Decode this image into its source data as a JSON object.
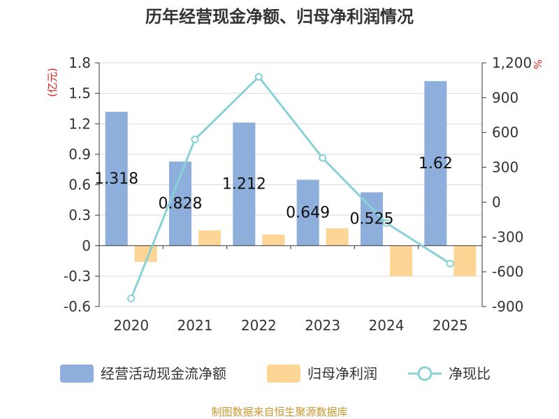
{
  "chart_data": {
    "type": "bar",
    "title": "历年经营现金净额、归母净利润情况",
    "categories": [
      "2020",
      "2021",
      "2022",
      "2023",
      "2024",
      "2025"
    ],
    "series": [
      {
        "name": "经营活动现金流净额",
        "type": "bar",
        "axis": "left",
        "color": "#8eaedb",
        "values": [
          1.318,
          0.828,
          1.212,
          0.649,
          0.525,
          1.62
        ],
        "labels": [
          "1.318",
          "0.828",
          "1.212",
          "0.649",
          "0.525",
          "1.62"
        ]
      },
      {
        "name": "归母净利润",
        "type": "bar",
        "axis": "left",
        "color": "#fdd696",
        "values": [
          -0.16,
          0.15,
          0.11,
          0.17,
          -0.3,
          -0.3
        ]
      },
      {
        "name": "净现比",
        "type": "line",
        "axis": "right",
        "color": "#88d1d6",
        "values": [
          -830,
          540,
          1080,
          380,
          -180,
          -530
        ]
      }
    ],
    "left_axis": {
      "unit": "(亿元)",
      "ylim": [
        -0.6,
        1.8
      ],
      "ticks": [
        {
          "value": 1.8,
          "label": "1.8"
        },
        {
          "value": 1.5,
          "label": "1.5"
        },
        {
          "value": 1.2,
          "label": "1.2"
        },
        {
          "value": 0.9,
          "label": "0.9"
        },
        {
          "value": 0.6,
          "label": "0.6"
        },
        {
          "value": 0.3,
          "label": "0.3"
        },
        {
          "value": 0,
          "label": "0"
        },
        {
          "value": -0.3,
          "label": "-0.3"
        },
        {
          "value": -0.6,
          "label": "-0.6"
        }
      ]
    },
    "right_axis": {
      "unit": "%",
      "ylim": [
        -900,
        1200
      ],
      "ticks": [
        {
          "value": 1200,
          "label": "1,200"
        },
        {
          "value": 900,
          "label": "900"
        },
        {
          "value": 600,
          "label": "600"
        },
        {
          "value": 300,
          "label": "300"
        },
        {
          "value": 0,
          "label": "0"
        },
        {
          "value": -300,
          "label": "-300"
        },
        {
          "value": -600,
          "label": "-600"
        },
        {
          "value": -900,
          "label": "-900"
        }
      ]
    },
    "legend_position": "bottom",
    "grid": true
  },
  "source": "制图数据来自恒生聚源数据库"
}
